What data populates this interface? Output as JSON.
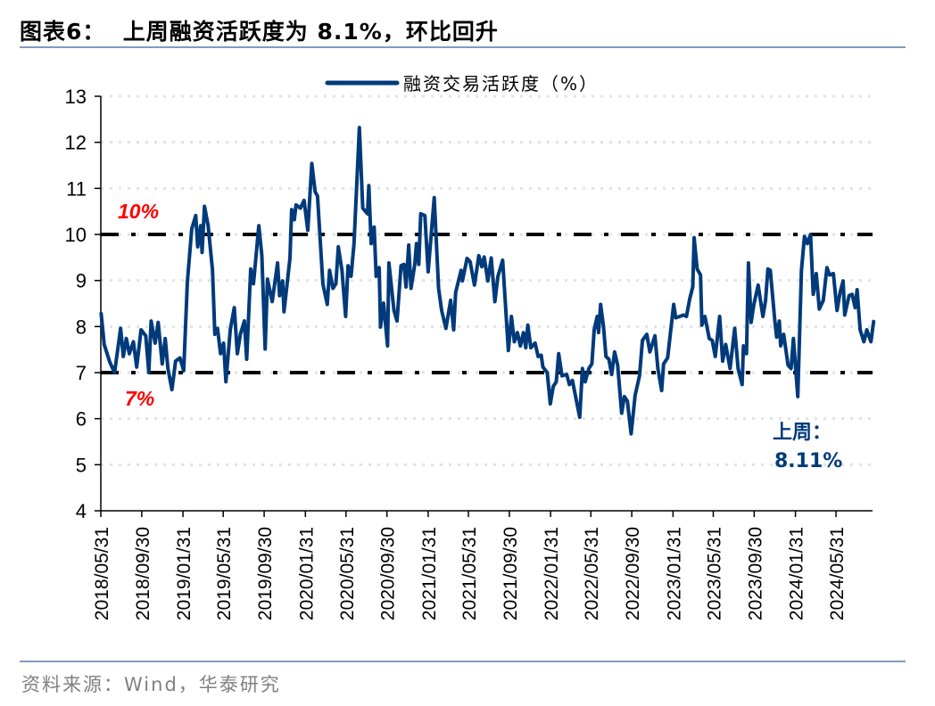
{
  "title": "图表6：  上周融资活跃度为 8.1%，环比回升",
  "source": "资料来源：Wind，华泰研究",
  "colors": {
    "series": "#003A7A",
    "reference": "#FF0000",
    "rule": "#7F9CC0",
    "grid": "#E3E3E3"
  },
  "chart_data": {
    "type": "line",
    "ylim": [
      4,
      13
    ],
    "yticks": [
      "4",
      "5",
      "6",
      "7",
      "8",
      "9",
      "10",
      "11",
      "12",
      "13"
    ],
    "xticks": [
      "2018/05/31",
      "2018/09/30",
      "2019/01/31",
      "2019/05/31",
      "2019/09/30",
      "2020/01/31",
      "2020/05/31",
      "2020/09/30",
      "2021/01/31",
      "2021/05/31",
      "2021/09/30",
      "2022/01/31",
      "2022/05/31",
      "2022/09/30",
      "2023/01/31",
      "2023/05/31",
      "2023/09/30",
      "2024/01/31",
      "2024/05/31"
    ],
    "grid": "horizontal dotted",
    "legend": {
      "position": "top-center",
      "label": "融资交易活跃度（%）"
    },
    "reference_lines": [
      {
        "value": 10,
        "label": "10%"
      },
      {
        "value": 7,
        "label": "7%"
      }
    ],
    "annotation": {
      "line1": "上周：",
      "line2": "8.11%"
    },
    "series": [
      {
        "name": "融资交易活跃度（%）",
        "points": [
          [
            "2018-06-01",
            8.28
          ],
          [
            "2018-06-10",
            7.61
          ],
          [
            "2018-06-27",
            7.22
          ],
          [
            "2018-07-11",
            7.0
          ],
          [
            "2018-07-29",
            7.96
          ],
          [
            "2018-08-06",
            7.35
          ],
          [
            "2018-08-15",
            7.74
          ],
          [
            "2018-08-24",
            7.41
          ],
          [
            "2018-09-05",
            7.67
          ],
          [
            "2018-09-15",
            7.12
          ],
          [
            "2018-09-28",
            7.93
          ],
          [
            "2018-10-12",
            7.8
          ],
          [
            "2018-10-21",
            7.0
          ],
          [
            "2018-10-28",
            8.12
          ],
          [
            "2018-11-09",
            7.64
          ],
          [
            "2018-11-18",
            8.09
          ],
          [
            "2018-11-30",
            7.19
          ],
          [
            "2018-12-09",
            7.74
          ],
          [
            "2018-12-17",
            7.09
          ],
          [
            "2018-12-29",
            6.63
          ],
          [
            "2019-01-09",
            7.25
          ],
          [
            "2019-01-22",
            7.32
          ],
          [
            "2019-02-02",
            7.04
          ],
          [
            "2019-02-13",
            8.96
          ],
          [
            "2019-02-26",
            10.12
          ],
          [
            "2019-03-10",
            10.41
          ],
          [
            "2019-03-16",
            9.73
          ],
          [
            "2019-03-25",
            10.19
          ],
          [
            "2019-03-29",
            9.61
          ],
          [
            "2019-04-05",
            10.61
          ],
          [
            "2019-04-16",
            10.19
          ],
          [
            "2019-04-29",
            9.22
          ],
          [
            "2019-05-06",
            7.83
          ],
          [
            "2019-05-14",
            7.96
          ],
          [
            "2019-05-23",
            7.41
          ],
          [
            "2019-06-01",
            7.64
          ],
          [
            "2019-06-08",
            6.8
          ],
          [
            "2019-06-21",
            7.93
          ],
          [
            "2019-07-03",
            8.41
          ],
          [
            "2019-07-12",
            7.41
          ],
          [
            "2019-07-21",
            7.83
          ],
          [
            "2019-08-02",
            8.12
          ],
          [
            "2019-08-09",
            7.29
          ],
          [
            "2019-08-21",
            9.25
          ],
          [
            "2019-08-29",
            8.93
          ],
          [
            "2019-09-14",
            10.19
          ],
          [
            "2019-09-23",
            9.54
          ],
          [
            "2019-10-03",
            7.51
          ],
          [
            "2019-10-10",
            9.03
          ],
          [
            "2019-10-24",
            8.54
          ],
          [
            "2019-11-09",
            9.38
          ],
          [
            "2019-11-15",
            8.67
          ],
          [
            "2019-11-24",
            8.99
          ],
          [
            "2019-11-28",
            8.32
          ],
          [
            "2019-12-16",
            9.48
          ],
          [
            "2019-12-21",
            10.54
          ],
          [
            "2019-12-29",
            10.32
          ],
          [
            "2020-01-03",
            10.64
          ],
          [
            "2020-01-16",
            10.57
          ],
          [
            "2020-01-27",
            10.74
          ],
          [
            "2020-02-07",
            10.09
          ],
          [
            "2020-02-19",
            11.54
          ],
          [
            "2020-02-29",
            10.93
          ],
          [
            "2020-03-07",
            10.83
          ],
          [
            "2020-03-23",
            8.93
          ],
          [
            "2020-04-05",
            8.48
          ],
          [
            "2020-04-12",
            9.22
          ],
          [
            "2020-04-22",
            8.83
          ],
          [
            "2020-05-01",
            8.93
          ],
          [
            "2020-05-08",
            9.73
          ],
          [
            "2020-05-19",
            9.22
          ],
          [
            "2020-05-30",
            8.22
          ],
          [
            "2020-06-06",
            9.32
          ],
          [
            "2020-06-15",
            9.09
          ],
          [
            "2020-06-24",
            9.8
          ],
          [
            "2020-07-10",
            12.32
          ],
          [
            "2020-07-20",
            10.57
          ],
          [
            "2020-08-03",
            10.45
          ],
          [
            "2020-08-07",
            11.06
          ],
          [
            "2020-08-14",
            9.8
          ],
          [
            "2020-08-23",
            10.16
          ],
          [
            "2020-08-29",
            9.09
          ],
          [
            "2020-09-07",
            9.28
          ],
          [
            "2020-09-11",
            7.99
          ],
          [
            "2020-09-20",
            8.51
          ],
          [
            "2020-10-02",
            7.58
          ],
          [
            "2020-10-06",
            9.38
          ],
          [
            "2020-10-21",
            8.35
          ],
          [
            "2020-10-30",
            8.12
          ],
          [
            "2020-11-11",
            9.32
          ],
          [
            "2020-11-20",
            9.35
          ],
          [
            "2020-11-26",
            8.86
          ],
          [
            "2020-12-04",
            9.77
          ],
          [
            "2020-12-11",
            8.83
          ],
          [
            "2020-12-22",
            9.35
          ],
          [
            "2020-12-27",
            9.8
          ],
          [
            "2021-01-03",
            9.35
          ],
          [
            "2021-01-09",
            10.45
          ],
          [
            "2021-01-21",
            10.41
          ],
          [
            "2021-01-31",
            9.19
          ],
          [
            "2021-02-18",
            10.8
          ],
          [
            "2021-03-03",
            8.83
          ],
          [
            "2021-03-12",
            8.35
          ],
          [
            "2021-03-25",
            7.96
          ],
          [
            "2021-04-08",
            8.57
          ],
          [
            "2021-04-17",
            7.93
          ],
          [
            "2021-04-23",
            8.74
          ],
          [
            "2021-05-09",
            9.22
          ],
          [
            "2021-05-13",
            8.99
          ],
          [
            "2021-05-27",
            9.48
          ],
          [
            "2021-06-05",
            9.41
          ],
          [
            "2021-06-18",
            8.9
          ],
          [
            "2021-07-01",
            9.54
          ],
          [
            "2021-07-10",
            9.3
          ],
          [
            "2021-07-17",
            9.51
          ],
          [
            "2021-07-28",
            8.99
          ],
          [
            "2021-08-07",
            9.49
          ],
          [
            "2021-08-18",
            8.54
          ],
          [
            "2021-08-27",
            9.09
          ],
          [
            "2021-09-10",
            9.44
          ],
          [
            "2021-09-27",
            7.48
          ],
          [
            "2021-10-06",
            8.22
          ],
          [
            "2021-10-15",
            7.67
          ],
          [
            "2021-10-24",
            7.87
          ],
          [
            "2021-11-02",
            7.58
          ],
          [
            "2021-11-11",
            7.87
          ],
          [
            "2021-11-18",
            7.54
          ],
          [
            "2021-11-24",
            8.03
          ],
          [
            "2021-12-03",
            7.54
          ],
          [
            "2021-12-16",
            7.64
          ],
          [
            "2021-12-25",
            7.35
          ],
          [
            "2022-01-03",
            7.38
          ],
          [
            "2022-01-08",
            7.12
          ],
          [
            "2022-01-21",
            7.0
          ],
          [
            "2022-01-30",
            6.32
          ],
          [
            "2022-02-08",
            6.7
          ],
          [
            "2022-02-17",
            6.8
          ],
          [
            "2022-02-24",
            7.41
          ],
          [
            "2022-03-06",
            6.93
          ],
          [
            "2022-03-20",
            6.96
          ],
          [
            "2022-03-28",
            6.74
          ],
          [
            "2022-04-06",
            6.83
          ],
          [
            "2022-04-20",
            6.32
          ],
          [
            "2022-04-28",
            6.03
          ],
          [
            "2022-05-06",
            7.09
          ],
          [
            "2022-05-14",
            6.8
          ],
          [
            "2022-05-25",
            7.09
          ],
          [
            "2022-06-03",
            7.19
          ],
          [
            "2022-06-10",
            7.93
          ],
          [
            "2022-06-19",
            8.22
          ],
          [
            "2022-06-23",
            7.87
          ],
          [
            "2022-06-29",
            8.48
          ],
          [
            "2022-07-08",
            7.99
          ],
          [
            "2022-07-15",
            7.35
          ],
          [
            "2022-07-24",
            7.29
          ],
          [
            "2022-08-01",
            6.96
          ],
          [
            "2022-08-10",
            7.45
          ],
          [
            "2022-08-19",
            7.16
          ],
          [
            "2022-08-31",
            6.12
          ],
          [
            "2022-09-08",
            6.48
          ],
          [
            "2022-09-17",
            6.38
          ],
          [
            "2022-09-28",
            5.67
          ],
          [
            "2022-10-10",
            6.51
          ],
          [
            "2022-10-23",
            6.93
          ],
          [
            "2022-11-01",
            7.7
          ],
          [
            "2022-11-14",
            7.83
          ],
          [
            "2022-11-23",
            7.45
          ],
          [
            "2022-12-08",
            7.8
          ],
          [
            "2022-12-17",
            7.09
          ],
          [
            "2022-12-28",
            6.61
          ],
          [
            "2023-01-03",
            7.19
          ],
          [
            "2023-01-15",
            7.32
          ],
          [
            "2023-01-24",
            7.9
          ],
          [
            "2023-02-02",
            8.48
          ],
          [
            "2023-02-08",
            8.19
          ],
          [
            "2023-02-20",
            8.22
          ],
          [
            "2023-03-03",
            8.25
          ],
          [
            "2023-03-12",
            8.22
          ],
          [
            "2023-03-22",
            8.61
          ],
          [
            "2023-03-31",
            8.86
          ],
          [
            "2023-04-04",
            9.93
          ],
          [
            "2023-04-13",
            9.25
          ],
          [
            "2023-04-23",
            9.12
          ],
          [
            "2023-04-27",
            8.03
          ],
          [
            "2023-05-06",
            8.22
          ],
          [
            "2023-05-19",
            7.74
          ],
          [
            "2023-05-28",
            7.7
          ],
          [
            "2023-06-06",
            7.35
          ],
          [
            "2023-06-19",
            8.22
          ],
          [
            "2023-06-28",
            7.25
          ],
          [
            "2023-07-07",
            7.61
          ],
          [
            "2023-07-20",
            7.09
          ],
          [
            "2023-08-03",
            7.96
          ],
          [
            "2023-08-13",
            7.09
          ],
          [
            "2023-08-25",
            6.74
          ],
          [
            "2023-08-29",
            7.58
          ],
          [
            "2023-09-07",
            7.41
          ],
          [
            "2023-09-13",
            9.38
          ],
          [
            "2023-09-21",
            8.09
          ],
          [
            "2023-09-29",
            8.48
          ],
          [
            "2023-10-12",
            8.9
          ],
          [
            "2023-10-26",
            8.22
          ],
          [
            "2023-11-03",
            8.57
          ],
          [
            "2023-11-10",
            9.25
          ],
          [
            "2023-11-17",
            9.22
          ],
          [
            "2023-11-30",
            8.16
          ],
          [
            "2023-12-06",
            7.77
          ],
          [
            "2023-12-14",
            8.12
          ],
          [
            "2023-12-18",
            7.58
          ],
          [
            "2023-12-27",
            7.83
          ],
          [
            "2024-01-09",
            7.16
          ],
          [
            "2024-01-18",
            7.09
          ],
          [
            "2024-01-25",
            7.74
          ],
          [
            "2024-02-07",
            6.48
          ],
          [
            "2024-02-18",
            9.22
          ],
          [
            "2024-02-27",
            9.96
          ],
          [
            "2024-03-07",
            9.8
          ],
          [
            "2024-03-16",
            10.0
          ],
          [
            "2024-03-24",
            8.7
          ],
          [
            "2024-04-02",
            9.15
          ],
          [
            "2024-04-11",
            8.38
          ],
          [
            "2024-04-23",
            8.57
          ],
          [
            "2024-05-04",
            9.28
          ],
          [
            "2024-05-12",
            9.12
          ],
          [
            "2024-05-23",
            9.15
          ],
          [
            "2024-06-03",
            8.35
          ],
          [
            "2024-06-12",
            8.74
          ],
          [
            "2024-06-21",
            8.99
          ],
          [
            "2024-06-26",
            8.25
          ],
          [
            "2024-07-09",
            8.67
          ],
          [
            "2024-07-18",
            8.7
          ],
          [
            "2024-07-27",
            8.41
          ],
          [
            "2024-08-02",
            8.8
          ],
          [
            "2024-08-11",
            7.93
          ],
          [
            "2024-08-22",
            7.67
          ],
          [
            "2024-08-31",
            7.93
          ],
          [
            "2024-09-12",
            7.67
          ],
          [
            "2024-09-20",
            8.11
          ]
        ]
      }
    ]
  }
}
